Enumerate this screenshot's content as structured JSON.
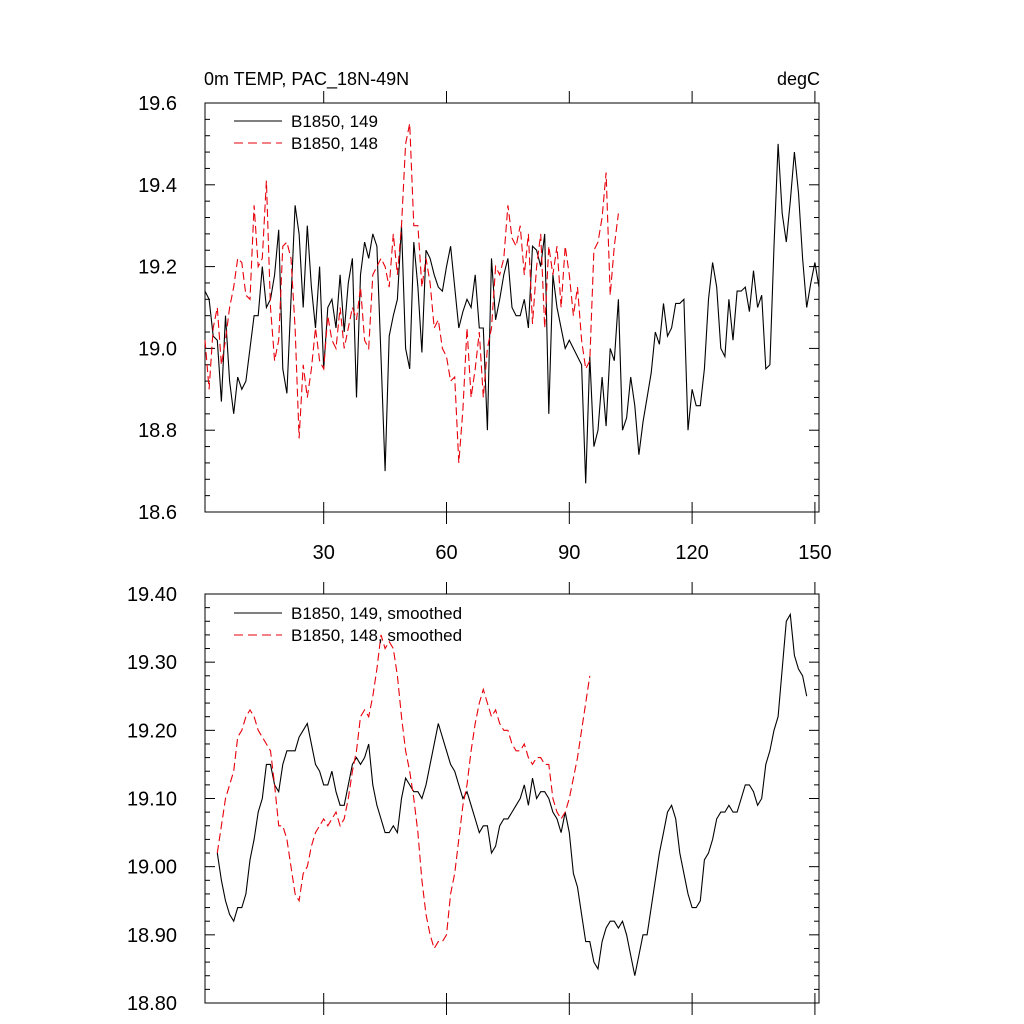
{
  "colors": {
    "series_149": "#000000",
    "series_148": "#e8000b"
  },
  "chart_data": [
    {
      "type": "line",
      "title_left": "0m TEMP, PAC_18N-49N",
      "title_right": "degC",
      "xlabel": "",
      "ylabel": "",
      "xlim": [
        1,
        151
      ],
      "ylim": [
        18.6,
        19.6
      ],
      "x_tick_values": [
        30,
        60,
        90,
        120,
        150
      ],
      "x_tick_labels": [
        "30",
        "60",
        "90",
        "120",
        "150"
      ],
      "y_tick_values": [
        18.6,
        18.8,
        19.0,
        19.2,
        19.4,
        19.6
      ],
      "y_tick_labels": [
        "18.6",
        "18.8",
        "19.0",
        "19.2",
        "19.4",
        "19.6"
      ],
      "grid": false,
      "legend": "top-left",
      "series": [
        {
          "name": "B1850, 149",
          "style": "solid",
          "color": "#000000",
          "x_start": 1,
          "values": [
            19.14,
            19.12,
            19.03,
            19.02,
            18.87,
            19.08,
            18.92,
            18.84,
            18.93,
            18.9,
            18.92,
            19.0,
            19.08,
            19.08,
            19.2,
            19.1,
            19.12,
            19.18,
            19.29,
            18.95,
            18.89,
            19.12,
            19.35,
            19.28,
            19.1,
            19.3,
            19.15,
            19.05,
            19.2,
            18.95,
            19.1,
            19.12,
            19.05,
            19.18,
            19.04,
            19.16,
            19.22,
            18.88,
            19.18,
            19.26,
            19.22,
            19.28,
            19.25,
            18.98,
            18.7,
            19.03,
            19.08,
            19.12,
            19.3,
            19.0,
            18.95,
            19.26,
            19.15,
            18.99,
            19.24,
            19.22,
            19.18,
            19.15,
            19.14,
            19.2,
            19.25,
            19.15,
            19.05,
            19.09,
            19.12,
            19.1,
            19.18,
            19.05,
            19.05,
            18.8,
            19.22,
            19.07,
            19.12,
            19.18,
            19.22,
            19.1,
            19.08,
            19.08,
            19.12,
            19.05,
            19.25,
            19.24,
            19.2,
            19.28,
            18.84,
            19.18,
            19.1,
            19.05,
            19.0,
            19.02,
            19.0,
            18.98,
            18.96,
            18.67,
            18.98,
            18.76,
            18.8,
            18.93,
            18.81,
            19.0,
            18.97,
            19.12,
            18.8,
            18.83,
            18.93,
            18.86,
            18.74,
            18.82,
            18.88,
            18.94,
            19.04,
            19.01,
            19.11,
            19.03,
            19.05,
            19.11,
            19.11,
            19.12,
            18.8,
            18.9,
            18.86,
            18.86,
            18.95,
            19.12,
            19.21,
            19.15,
            19.0,
            18.98,
            19.12,
            19.02,
            19.14,
            19.14,
            19.15,
            19.09,
            19.19,
            19.1,
            19.13,
            18.95,
            18.96,
            19.25,
            19.5,
            19.33,
            19.26,
            19.36,
            19.48,
            19.38,
            19.22,
            19.1,
            19.16,
            19.21,
            19.15
          ]
        },
        {
          "name": "B1850, 148",
          "style": "dashed",
          "color": "#e8000b",
          "x_start": 1,
          "values": [
            19.02,
            18.9,
            19.05,
            19.1,
            18.96,
            19.02,
            19.1,
            19.15,
            19.22,
            19.21,
            19.13,
            19.12,
            19.35,
            19.2,
            19.22,
            19.41,
            19.1,
            18.97,
            19.02,
            19.25,
            19.26,
            19.22,
            19.05,
            18.78,
            18.96,
            18.88,
            18.95,
            19.05,
            18.97,
            18.95,
            19.08,
            19.02,
            19.0,
            19.1,
            19.0,
            19.05,
            19.1,
            19.07,
            19.15,
            19.02,
            19.0,
            19.18,
            19.2,
            19.22,
            19.2,
            19.15,
            19.28,
            19.18,
            19.3,
            19.5,
            19.55,
            19.3,
            19.3,
            19.15,
            19.22,
            19.16,
            19.05,
            19.07,
            19.0,
            18.98,
            18.92,
            18.93,
            18.72,
            18.85,
            19.05,
            18.88,
            18.95,
            19.04,
            18.88,
            19.0,
            19.05,
            19.2,
            19.18,
            19.22,
            19.35,
            19.27,
            19.25,
            19.3,
            19.18,
            19.28,
            19.06,
            19.2,
            19.28,
            19.05,
            19.25,
            19.18,
            19.25,
            19.1,
            19.25,
            19.18,
            19.08,
            19.15,
            19.02,
            18.95,
            18.97,
            19.24,
            19.26,
            19.32,
            19.43,
            19.13,
            19.25,
            19.33
          ]
        }
      ]
    },
    {
      "type": "line",
      "xlabel": "",
      "ylabel": "",
      "xlim": [
        1,
        151
      ],
      "ylim": [
        18.8,
        19.4
      ],
      "x_tick_values": [
        30,
        60,
        90,
        120,
        150
      ],
      "y_tick_values": [
        18.8,
        18.9,
        19.0,
        19.1,
        19.2,
        19.3,
        19.4
      ],
      "y_tick_labels": [
        "18.80",
        "18.90",
        "19.00",
        "19.10",
        "19.20",
        "19.30",
        "19.40"
      ],
      "grid": false,
      "legend": "top-left",
      "series": [
        {
          "name": "B1850, 149, smoothed",
          "style": "solid",
          "color": "#000000",
          "x_start": 4,
          "values": [
            19.02,
            18.98,
            18.95,
            18.93,
            18.92,
            18.94,
            18.94,
            18.96,
            19.01,
            19.04,
            19.08,
            19.1,
            19.15,
            19.15,
            19.12,
            19.11,
            19.15,
            19.17,
            19.17,
            19.17,
            19.19,
            19.2,
            19.21,
            19.18,
            19.15,
            19.14,
            19.12,
            19.12,
            19.14,
            19.11,
            19.09,
            19.09,
            19.12,
            19.15,
            19.16,
            19.15,
            19.16,
            19.18,
            19.12,
            19.09,
            19.07,
            19.05,
            19.05,
            19.06,
            19.05,
            19.1,
            19.13,
            19.12,
            19.11,
            19.11,
            19.1,
            19.12,
            19.15,
            19.18,
            19.21,
            19.19,
            19.17,
            19.15,
            19.14,
            19.12,
            19.1,
            19.11,
            19.09,
            19.07,
            19.05,
            19.06,
            19.06,
            19.02,
            19.03,
            19.06,
            19.07,
            19.07,
            19.08,
            19.09,
            19.1,
            19.12,
            19.09,
            19.13,
            19.1,
            19.11,
            19.11,
            19.1,
            19.08,
            19.07,
            19.05,
            19.08,
            19.05,
            18.99,
            18.97,
            18.93,
            18.89,
            18.89,
            18.86,
            18.85,
            18.89,
            18.91,
            18.92,
            18.92,
            18.91,
            18.92,
            18.9,
            18.87,
            18.84,
            18.87,
            18.9,
            18.9,
            18.94,
            18.98,
            19.02,
            19.05,
            19.08,
            19.09,
            19.07,
            19.02,
            18.99,
            18.96,
            18.94,
            18.94,
            18.95,
            19.01,
            19.02,
            19.04,
            19.07,
            19.08,
            19.08,
            19.09,
            19.08,
            19.08,
            19.1,
            19.12,
            19.12,
            19.11,
            19.09,
            19.1,
            19.15,
            19.17,
            19.2,
            19.22,
            19.29,
            19.36,
            19.37,
            19.31,
            19.29,
            19.28,
            19.25
          ]
        },
        {
          "name": "B1850, 148, smoothed",
          "style": "dashed",
          "color": "#e8000b",
          "x_start": 4,
          "values": [
            19.02,
            19.06,
            19.1,
            19.12,
            19.14,
            19.19,
            19.2,
            19.22,
            19.23,
            19.22,
            19.2,
            19.19,
            19.18,
            19.17,
            19.12,
            19.06,
            19.06,
            19.04,
            19.0,
            18.96,
            18.95,
            18.99,
            19.0,
            19.03,
            19.05,
            19.06,
            19.07,
            19.06,
            19.07,
            19.08,
            19.06,
            19.07,
            19.1,
            19.14,
            19.17,
            19.22,
            19.23,
            19.22,
            19.25,
            19.29,
            19.34,
            19.32,
            19.33,
            19.32,
            19.28,
            19.22,
            19.17,
            19.14,
            19.1,
            19.05,
            18.98,
            18.93,
            18.9,
            18.88,
            18.89,
            18.89,
            18.9,
            18.96,
            18.99,
            19.04,
            19.09,
            19.12,
            19.17,
            19.21,
            19.24,
            19.26,
            19.24,
            19.22,
            19.23,
            19.21,
            19.2,
            19.2,
            19.18,
            19.17,
            19.17,
            19.18,
            19.16,
            19.15,
            19.16,
            19.16,
            19.15,
            19.15,
            19.1,
            19.08,
            19.07,
            19.08,
            19.1,
            19.13,
            19.16,
            19.2,
            19.24,
            19.28
          ]
        }
      ]
    }
  ],
  "legend_top": [
    "B1850, 149",
    "B1850, 148"
  ],
  "legend_bottom": [
    "B1850, 149, smoothed",
    "B1850, 148, smoothed"
  ]
}
